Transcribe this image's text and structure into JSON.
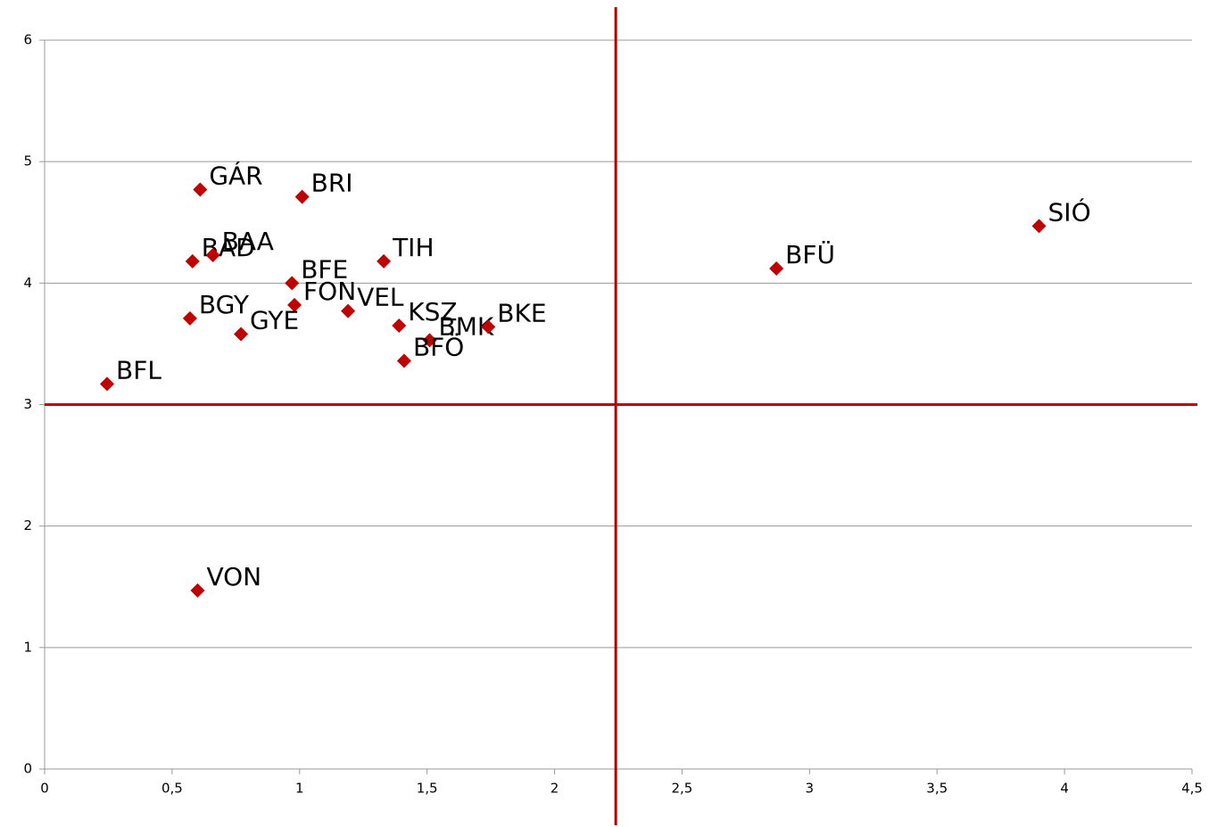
{
  "chart_data": {
    "type": "scatter",
    "color": "#c00000",
    "grid": true,
    "xlim": [
      0,
      4.5
    ],
    "xticks": [
      0,
      {
        "value": 0.5,
        "label": "0,5"
      },
      1,
      {
        "value": 1.5,
        "label": "1,5"
      },
      2,
      {
        "value": 2.5,
        "label": "2,5"
      },
      3,
      {
        "value": 3.5,
        "label": "3,5"
      },
      4,
      {
        "value": 4.5,
        "label": "4,5"
      }
    ],
    "ylim": [
      0,
      6
    ],
    "yticks": [
      0,
      1,
      2,
      3,
      4,
      5,
      6
    ],
    "reference_lines": {
      "x": 2.24,
      "y": 3,
      "color": "#c00000"
    },
    "points": [
      {
        "label": "GÁR",
        "x": 0.61,
        "y": 4.77
      },
      {
        "label": "BRI",
        "x": 1.01,
        "y": 4.71
      },
      {
        "label": "BAD",
        "x": 0.58,
        "y": 4.18
      },
      {
        "label": "BAA",
        "x": 0.66,
        "y": 4.23
      },
      {
        "label": "BFE",
        "x": 0.97,
        "y": 4.0
      },
      {
        "label": "FON",
        "x": 0.98,
        "y": 3.82
      },
      {
        "label": "BGY",
        "x": 0.57,
        "y": 3.71
      },
      {
        "label": "GYE",
        "x": 0.77,
        "y": 3.58
      },
      {
        "label": "BFL",
        "x": 0.245,
        "y": 3.17
      },
      {
        "label": "VEL",
        "x": 1.19,
        "y": 3.77
      },
      {
        "label": "TIH",
        "x": 1.33,
        "y": 4.18
      },
      {
        "label": "KSZ",
        "x": 1.39,
        "y": 3.65
      },
      {
        "label": "BMK",
        "x": 1.51,
        "y": 3.53
      },
      {
        "label": "BFÖ",
        "x": 1.41,
        "y": 3.36
      },
      {
        "label": "BKE",
        "x": 1.74,
        "y": 3.64
      },
      {
        "label": "VON",
        "x": 0.6,
        "y": 1.47
      },
      {
        "label": "BFÜ",
        "x": 2.87,
        "y": 4.12
      },
      {
        "label": "SIÓ",
        "x": 3.9,
        "y": 4.47
      }
    ]
  }
}
